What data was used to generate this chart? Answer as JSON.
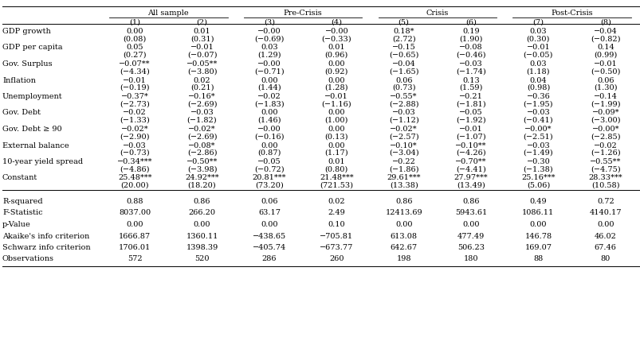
{
  "col_groups": [
    {
      "label": "All sample",
      "cols": [
        "(1)",
        "(2)"
      ]
    },
    {
      "label": "Pre-Crisis",
      "cols": [
        "(3)",
        "(4)"
      ]
    },
    {
      "label": "Crisis",
      "cols": [
        "(5)",
        "(6)"
      ]
    },
    {
      "label": "Post-Crisis",
      "cols": [
        "(7)",
        "(8)"
      ]
    }
  ],
  "col_headers": [
    "(1)",
    "(2)",
    "(3)",
    "(4)",
    "(5)",
    "(6)",
    "(7)",
    "(8)"
  ],
  "rows": [
    {
      "label": "GDP growth",
      "values": [
        "0.00",
        "0.01",
        "−0.00",
        "−0.00",
        "0.18*",
        "0.19",
        "0.03",
        "−0.04"
      ],
      "tvals": [
        "(0.08)",
        "(0.31)",
        "(−0.69)",
        "(−0.33)",
        "(2.72)",
        "(1.90)",
        "(0.30)",
        "(−0.82)"
      ]
    },
    {
      "label": "GDP per capita",
      "values": [
        "0.05",
        "−0.01",
        "0.03",
        "0.01",
        "−0.15",
        "−0.08",
        "−0.01",
        "0.14"
      ],
      "tvals": [
        "(0.27)",
        "(−0.07)",
        "(1.29)",
        "(0.96)",
        "(−0.65)",
        "(−0.46)",
        "(−0.05)",
        "(0.99)"
      ]
    },
    {
      "label": "Gov. Surplus",
      "values": [
        "−0.07**",
        "−0.05**",
        "−0.00",
        "0.00",
        "−0.04",
        "−0.03",
        "0.03",
        "−0.01"
      ],
      "tvals": [
        "(−4.34)",
        "(−3.80)",
        "(−0.71)",
        "(0.92)",
        "(−1.65)",
        "(−1.74)",
        "(1.18)",
        "(−0.50)"
      ]
    },
    {
      "label": "Inflation",
      "values": [
        "−0.01",
        "0.02",
        "0.00",
        "0.00",
        "0.06",
        "0.13",
        "0.04",
        "0.06"
      ],
      "tvals": [
        "(−0.19)",
        "(0.21)",
        "(1.44)",
        "(1.28)",
        "(0.73)",
        "(1.59)",
        "(0.98)",
        "(1.30)"
      ]
    },
    {
      "label": "Unemployment",
      "values": [
        "−0.37*",
        "−0.16*",
        "−0.02",
        "−0.01",
        "−0.55*",
        "−0.21",
        "−0.36",
        "−0.14"
      ],
      "tvals": [
        "(−2.73)",
        "(−2.69)",
        "(−1.83)",
        "(−1.16)",
        "(−2.88)",
        "(−1.81)",
        "(−1.95)",
        "(−1.99)"
      ]
    },
    {
      "label": "Gov. Debt",
      "values": [
        "−0.02",
        "−0.03",
        "0.00",
        "0.00",
        "−0.03",
        "−0.05",
        "−0.03",
        "−0.09*"
      ],
      "tvals": [
        "(−1.33)",
        "(−1.82)",
        "(1.46)",
        "(1.00)",
        "(−1.12)",
        "(−1.92)",
        "(−0.41)",
        "(−3.00)"
      ]
    },
    {
      "label": "Gov. Debt ≥ 90",
      "values": [
        "−0.02*",
        "−0.02*",
        "−0.00",
        "0.00",
        "−0.02*",
        "−0.01",
        "−0.00*",
        "−0.00*"
      ],
      "tvals": [
        "(−2.90)",
        "(−2.69)",
        "(−0.16)",
        "(0.13)",
        "(−2.57)",
        "(−1.07)",
        "(−2.51)",
        "(−2.85)"
      ]
    },
    {
      "label": "External balance",
      "values": [
        "−0.03",
        "−0.08*",
        "0.00",
        "0.00",
        "−0.10*",
        "−0.10**",
        "−0.03",
        "−0.02"
      ],
      "tvals": [
        "(−0.73)",
        "(−2.86)",
        "(0.87)",
        "(1.17)",
        "(−3.04)",
        "(−4.26)",
        "(−1.49)",
        "(−1.26)"
      ]
    },
    {
      "label": "10-year yield spread",
      "values": [
        "−0.34***",
        "−0.50**",
        "−0.05",
        "0.01",
        "−0.22",
        "−0.70**",
        "−0.30",
        "−0.55**"
      ],
      "tvals": [
        "(−4.86)",
        "(−3.98)",
        "(−0.72)",
        "(0.80)",
        "(−1.86)",
        "(−4.41)",
        "(−1.38)",
        "(−4.75)"
      ]
    },
    {
      "label": "Constant",
      "values": [
        "25.48***",
        "24.92***",
        "20.81***",
        "21.48***",
        "29.61***",
        "27.97***",
        "25.16***",
        "28.33***"
      ],
      "tvals": [
        "(20.00)",
        "(18.20)",
        "(73.20)",
        "(721.53)",
        "(13.38)",
        "(13.49)",
        "(5.06)",
        "(10.58)"
      ]
    }
  ],
  "stats": [
    {
      "label": "R-squared",
      "values": [
        "0.88",
        "0.86",
        "0.06",
        "0.02",
        "0.86",
        "0.86",
        "0.49",
        "0.72"
      ]
    },
    {
      "label": "F-Statistic",
      "values": [
        "8037.00",
        "266.20",
        "63.17",
        "2.49",
        "12413.69",
        "5943.61",
        "1086.11",
        "4140.17"
      ]
    },
    {
      "label": "p-Value",
      "values": [
        "0.00",
        "0.00",
        "0.00",
        "0.10",
        "0.00",
        "0.00",
        "0.00",
        "0.00"
      ]
    },
    {
      "label": "Akaike's info criterion",
      "values": [
        "1666.87",
        "1360.11",
        "−438.65",
        "−705.81",
        "613.08",
        "477.49",
        "146.78",
        "46.02"
      ]
    },
    {
      "label": "Schwarz info criterion",
      "values": [
        "1706.01",
        "1398.39",
        "−405.74",
        "−673.77",
        "642.67",
        "506.23",
        "169.07",
        "67.46"
      ]
    },
    {
      "label": "Observations",
      "values": [
        "572",
        "520",
        "286",
        "260",
        "198",
        "180",
        "88",
        "80"
      ]
    }
  ],
  "font_size": 7.0,
  "fig_width": 8.04,
  "fig_height": 4.29
}
